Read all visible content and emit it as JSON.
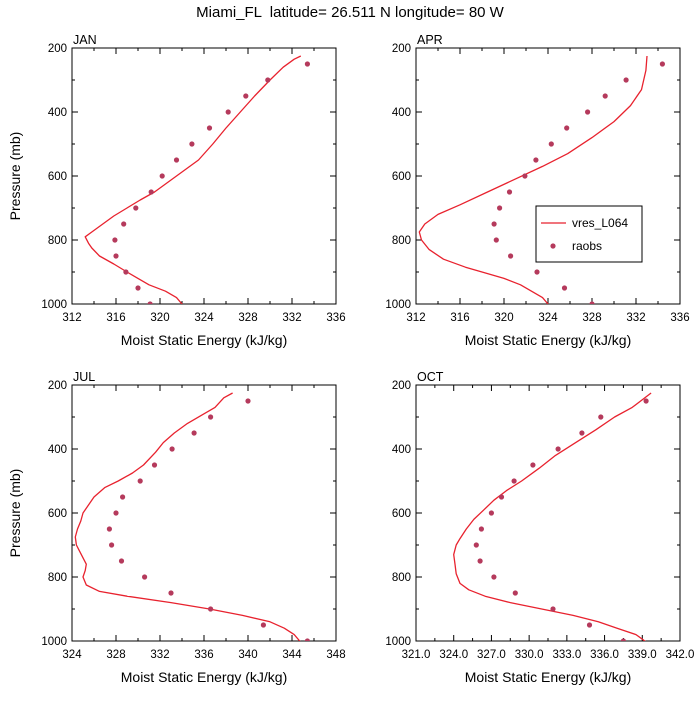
{
  "title": "Miami_FL  latitude= 26.511 N longitude= 80 W",
  "colors": {
    "model_line": "#e8222e",
    "obs_marker": "#b53a5c",
    "axis": "#000000"
  },
  "chart_data": [
    {
      "type": "line",
      "panel_label": "JAN",
      "xlabel": "Moist Static Energy (kJ/kg)",
      "ylabel": "Pressure (mb)",
      "xlim": [
        312,
        336
      ],
      "ylim": [
        1000,
        200
      ],
      "y_inverted": true,
      "xticks": [
        312,
        316,
        320,
        324,
        328,
        332,
        336
      ],
      "xtick_labels": [
        "312",
        "316",
        "320",
        "324",
        "328",
        "332",
        "336"
      ],
      "yticks": [
        200,
        400,
        600,
        800,
        1000
      ],
      "ytick_labels": [
        "200",
        "400",
        "600",
        "800",
        "1000"
      ],
      "series": [
        {
          "name": "vres_L064",
          "style": "line",
          "points": [
            [
              322.3,
              1015
            ],
            [
              322.0,
              1000
            ],
            [
              321.5,
              980
            ],
            [
              320.5,
              960
            ],
            [
              319.0,
              940
            ],
            [
              318.0,
              920
            ],
            [
              317.0,
              900
            ],
            [
              315.8,
              875
            ],
            [
              314.5,
              850
            ],
            [
              313.8,
              825
            ],
            [
              313.5,
              810
            ],
            [
              313.2,
              790
            ],
            [
              313.8,
              775
            ],
            [
              314.8,
              750
            ],
            [
              315.8,
              725
            ],
            [
              317.0,
              700
            ],
            [
              318.2,
              675
            ],
            [
              319.5,
              650
            ],
            [
              320.5,
              625
            ],
            [
              321.5,
              600
            ],
            [
              322.5,
              575
            ],
            [
              323.5,
              550
            ],
            [
              324.8,
              500
            ],
            [
              326.0,
              450
            ],
            [
              327.3,
              400
            ],
            [
              328.6,
              350
            ],
            [
              330.0,
              300
            ],
            [
              331.2,
              260
            ],
            [
              332.2,
              235
            ],
            [
              332.8,
              225
            ]
          ]
        },
        {
          "name": "raobs",
          "style": "marker",
          "points": [
            [
              333.4,
              250
            ],
            [
              329.8,
              300
            ],
            [
              327.8,
              350
            ],
            [
              326.2,
              400
            ],
            [
              324.5,
              450
            ],
            [
              322.9,
              500
            ],
            [
              321.5,
              550
            ],
            [
              320.2,
              600
            ],
            [
              319.2,
              650
            ],
            [
              317.8,
              700
            ],
            [
              316.7,
              750
            ],
            [
              315.9,
              800
            ],
            [
              316.0,
              850
            ],
            [
              316.9,
              900
            ],
            [
              318.0,
              950
            ],
            [
              319.1,
              1000
            ]
          ]
        }
      ]
    },
    {
      "type": "line",
      "panel_label": "APR",
      "xlabel": "Moist Static Energy (kJ/kg)",
      "ylabel": "",
      "xlim": [
        312,
        336
      ],
      "ylim": [
        1000,
        200
      ],
      "y_inverted": true,
      "xticks": [
        312,
        316,
        320,
        324,
        328,
        332,
        336
      ],
      "xtick_labels": [
        "312",
        "316",
        "320",
        "324",
        "328",
        "332",
        "336"
      ],
      "yticks": [
        200,
        400,
        600,
        800,
        1000
      ],
      "ytick_labels": [
        "200",
        "400",
        "600",
        "800",
        "1000"
      ],
      "legend": {
        "position": "right",
        "entries": [
          "vres_L064",
          "raobs"
        ]
      },
      "series": [
        {
          "name": "vres_L064",
          "style": "line",
          "points": [
            [
              324.3,
              1015
            ],
            [
              324.0,
              1000
            ],
            [
              323.5,
              980
            ],
            [
              322.5,
              960
            ],
            [
              321.5,
              940
            ],
            [
              320.0,
              920
            ],
            [
              318.0,
              900
            ],
            [
              316.5,
              885
            ],
            [
              314.5,
              860
            ],
            [
              313.2,
              830
            ],
            [
              312.5,
              800
            ],
            [
              312.3,
              775
            ],
            [
              312.8,
              750
            ],
            [
              314.0,
              720
            ],
            [
              316.0,
              690
            ],
            [
              318.5,
              650
            ],
            [
              321.0,
              610
            ],
            [
              323.5,
              570
            ],
            [
              325.8,
              530
            ],
            [
              328.0,
              480
            ],
            [
              330.0,
              430
            ],
            [
              331.5,
              380
            ],
            [
              332.5,
              330
            ],
            [
              332.9,
              270
            ],
            [
              333.0,
              225
            ]
          ]
        },
        {
          "name": "raobs",
          "style": "marker",
          "points": [
            [
              334.4,
              250
            ],
            [
              331.1,
              300
            ],
            [
              329.2,
              350
            ],
            [
              327.6,
              400
            ],
            [
              325.7,
              450
            ],
            [
              324.3,
              500
            ],
            [
              322.9,
              550
            ],
            [
              321.9,
              600
            ],
            [
              320.5,
              650
            ],
            [
              319.6,
              700
            ],
            [
              319.1,
              750
            ],
            [
              319.3,
              800
            ],
            [
              320.6,
              850
            ],
            [
              323.0,
              900
            ],
            [
              325.5,
              950
            ],
            [
              328.0,
              1000
            ]
          ]
        }
      ]
    },
    {
      "type": "line",
      "panel_label": "JUL",
      "xlabel": "Moist Static Energy (kJ/kg)",
      "ylabel": "Pressure (mb)",
      "xlim": [
        324,
        348
      ],
      "ylim": [
        1000,
        200
      ],
      "y_inverted": true,
      "xticks": [
        324,
        328,
        332,
        336,
        340,
        344,
        348
      ],
      "xtick_labels": [
        "324",
        "328",
        "332",
        "336",
        "340",
        "344",
        "348"
      ],
      "yticks": [
        200,
        400,
        600,
        800,
        1000
      ],
      "ytick_labels": [
        "200",
        "400",
        "600",
        "800",
        "1000"
      ],
      "series": [
        {
          "name": "vres_L064",
          "style": "line",
          "points": [
            [
              345.0,
              1015
            ],
            [
              344.7,
              1000
            ],
            [
              344.2,
              980
            ],
            [
              343.3,
              960
            ],
            [
              342.0,
              940
            ],
            [
              339.5,
              920
            ],
            [
              336.5,
              900
            ],
            [
              333.0,
              880
            ],
            [
              329.0,
              860
            ],
            [
              326.5,
              845
            ],
            [
              325.3,
              825
            ],
            [
              325.0,
              800
            ],
            [
              325.2,
              780
            ],
            [
              325.3,
              760
            ],
            [
              325.0,
              740
            ],
            [
              324.7,
              720
            ],
            [
              324.4,
              700
            ],
            [
              324.3,
              675
            ],
            [
              324.5,
              650
            ],
            [
              324.8,
              625
            ],
            [
              325.0,
              600
            ],
            [
              325.5,
              575
            ],
            [
              326.0,
              550
            ],
            [
              327.0,
              520
            ],
            [
              328.2,
              500
            ],
            [
              329.5,
              475
            ],
            [
              330.5,
              450
            ],
            [
              331.6,
              410
            ],
            [
              332.3,
              380
            ],
            [
              333.3,
              350
            ],
            [
              334.5,
              320
            ],
            [
              336.0,
              290
            ],
            [
              337.0,
              270
            ],
            [
              337.8,
              240
            ],
            [
              338.6,
              225
            ]
          ]
        },
        {
          "name": "raobs",
          "style": "marker",
          "points": [
            [
              340.0,
              250
            ],
            [
              336.6,
              300
            ],
            [
              335.1,
              350
            ],
            [
              333.1,
              400
            ],
            [
              331.5,
              450
            ],
            [
              330.2,
              500
            ],
            [
              328.6,
              550
            ],
            [
              328.0,
              600
            ],
            [
              327.4,
              650
            ],
            [
              327.6,
              700
            ],
            [
              328.5,
              750
            ],
            [
              330.6,
              800
            ],
            [
              333.0,
              850
            ],
            [
              336.6,
              900
            ],
            [
              341.4,
              950
            ],
            [
              345.4,
              1000
            ]
          ]
        }
      ]
    },
    {
      "type": "line",
      "panel_label": "OCT",
      "xlabel": "Moist Static Energy (kJ/kg)",
      "ylabel": "",
      "xlim": [
        321.0,
        342.0
      ],
      "ylim": [
        1000,
        200
      ],
      "y_inverted": true,
      "xticks": [
        321,
        324,
        327,
        330,
        333,
        336,
        339,
        342
      ],
      "xtick_labels": [
        "321.0",
        "324.0",
        "327.0",
        "330.0",
        "333.0",
        "336.0",
        "339.0",
        "342.0"
      ],
      "yticks": [
        200,
        400,
        600,
        800,
        1000
      ],
      "ytick_labels": [
        "200",
        "400",
        "600",
        "800",
        "1000"
      ],
      "series": [
        {
          "name": "vres_L064",
          "style": "line",
          "points": [
            [
              339.7,
              1015
            ],
            [
              339.2,
              1000
            ],
            [
              338.5,
              980
            ],
            [
              337.0,
              960
            ],
            [
              335.5,
              940
            ],
            [
              333.5,
              920
            ],
            [
              331.0,
              900
            ],
            [
              328.5,
              880
            ],
            [
              326.5,
              860
            ],
            [
              325.2,
              840
            ],
            [
              324.5,
              820
            ],
            [
              324.2,
              790
            ],
            [
              324.1,
              760
            ],
            [
              324.0,
              730
            ],
            [
              324.2,
              700
            ],
            [
              324.5,
              680
            ],
            [
              325.0,
              650
            ],
            [
              325.6,
              620
            ],
            [
              326.4,
              590
            ],
            [
              327.2,
              560
            ],
            [
              328.2,
              530
            ],
            [
              329.4,
              500
            ],
            [
              330.8,
              460
            ],
            [
              332.1,
              420
            ],
            [
              333.7,
              380
            ],
            [
              335.3,
              340
            ],
            [
              336.8,
              300
            ],
            [
              338.2,
              270
            ],
            [
              339.7,
              225
            ]
          ]
        },
        {
          "name": "raobs",
          "style": "marker",
          "points": [
            [
              339.3,
              250
            ],
            [
              335.7,
              300
            ],
            [
              334.2,
              350
            ],
            [
              332.3,
              400
            ],
            [
              330.3,
              450
            ],
            [
              328.8,
              500
            ],
            [
              327.8,
              550
            ],
            [
              327.0,
              600
            ],
            [
              326.2,
              650
            ],
            [
              325.8,
              700
            ],
            [
              326.1,
              750
            ],
            [
              327.2,
              800
            ],
            [
              328.9,
              850
            ],
            [
              331.9,
              900
            ],
            [
              334.8,
              950
            ],
            [
              337.5,
              1000
            ]
          ]
        }
      ]
    }
  ]
}
